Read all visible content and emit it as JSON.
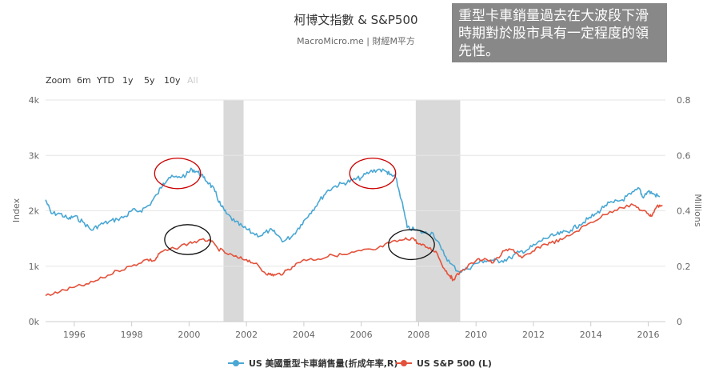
{
  "annotation": "重型卡車銷量過去在大波段下滑時期對於股市具有一定程度的領先性。",
  "colors": {
    "truck": "#49a7d4",
    "sp500": "#e4513a",
    "recession": "#d9d9d9",
    "circle_red": "#cc0000",
    "circle_black": "#111111",
    "grid": "#e6e6e6"
  },
  "zoom": {
    "label": "Zoom",
    "buttons": [
      "6m",
      "YTD",
      "1y",
      "5y",
      "10y"
    ],
    "disabled": "All"
  },
  "chart_data": {
    "type": "line",
    "title": "柯博文指數 & S&P500",
    "subtitle": "MacroMicro.me | 財經M平方",
    "xlabel": "",
    "xlim": [
      1995.0,
      2016.6
    ],
    "x_ticks": [
      "1996",
      "1998",
      "2000",
      "2002",
      "2004",
      "2006",
      "2008",
      "2010",
      "2012",
      "2014",
      "2016"
    ],
    "y_left": {
      "label": "Index",
      "ylim": [
        0,
        4000
      ],
      "ticks": [
        "0k",
        "1k",
        "2k",
        "3k",
        "4k"
      ]
    },
    "y_right": {
      "label": "Millions",
      "ylim": [
        0,
        0.8
      ],
      "ticks": [
        "0",
        "0.2",
        "0.4",
        "0.6",
        "0.8"
      ]
    },
    "recessions": [
      [
        2001.2,
        2001.9
      ],
      [
        2007.9,
        2009.45
      ]
    ],
    "grid": true,
    "legend_position": "bottom-center",
    "series": [
      {
        "name": "US 美國重型卡車銷售量(折成年率,R)",
        "axis": "right",
        "color": "#49a7d4",
        "x": [
          1995.0,
          1995.2,
          1995.5,
          1995.8,
          1996.0,
          1996.3,
          1996.6,
          1996.9,
          1997.2,
          1997.5,
          1997.8,
          1998.0,
          1998.3,
          1998.6,
          1998.9,
          1999.1,
          1999.3,
          1999.6,
          1999.9,
          2000.1,
          2000.3,
          2000.5,
          2000.7,
          2000.9,
          2001.1,
          2001.3,
          2001.6,
          2001.9,
          2002.2,
          2002.5,
          2002.8,
          2003.0,
          2003.3,
          2003.6,
          2003.9,
          2004.2,
          2004.5,
          2004.8,
          2005.1,
          2005.4,
          2005.7,
          2006.0,
          2006.3,
          2006.6,
          2006.9,
          2007.0,
          2007.2,
          2007.4,
          2007.6,
          2007.9,
          2008.2,
          2008.5,
          2008.8,
          2009.1,
          2009.4,
          2009.7,
          2010.0,
          2010.3,
          2010.6,
          2010.9,
          2011.2,
          2011.5,
          2011.8,
          2012.1,
          2012.4,
          2012.7,
          2013.0,
          2013.3,
          2013.6,
          2013.9,
          2014.2,
          2014.5,
          2014.8,
          2015.1,
          2015.4,
          2015.7,
          2015.8,
          2016.0,
          2016.2,
          2016.4
        ],
        "y": [
          0.44,
          0.39,
          0.39,
          0.37,
          0.38,
          0.36,
          0.33,
          0.35,
          0.36,
          0.37,
          0.38,
          0.4,
          0.4,
          0.42,
          0.46,
          0.5,
          0.52,
          0.52,
          0.53,
          0.55,
          0.54,
          0.52,
          0.5,
          0.47,
          0.42,
          0.39,
          0.36,
          0.34,
          0.32,
          0.31,
          0.33,
          0.32,
          0.29,
          0.31,
          0.35,
          0.39,
          0.43,
          0.47,
          0.49,
          0.5,
          0.51,
          0.52,
          0.54,
          0.55,
          0.54,
          0.53,
          0.52,
          0.44,
          0.34,
          0.33,
          0.32,
          0.32,
          0.26,
          0.21,
          0.18,
          0.19,
          0.21,
          0.22,
          0.22,
          0.22,
          0.23,
          0.25,
          0.26,
          0.28,
          0.3,
          0.31,
          0.32,
          0.33,
          0.35,
          0.37,
          0.39,
          0.42,
          0.43,
          0.44,
          0.46,
          0.48,
          0.45,
          0.47,
          0.46,
          0.45
        ]
      },
      {
        "name": "US S&P 500 (L)",
        "axis": "left",
        "color": "#e4513a",
        "x": [
          1995.0,
          1995.5,
          1996.0,
          1996.5,
          1997.0,
          1997.5,
          1998.0,
          1998.5,
          1998.8,
          1999.0,
          1999.5,
          2000.0,
          2000.3,
          2000.7,
          2001.0,
          2001.3,
          2001.7,
          2002.0,
          2002.3,
          2002.6,
          2002.8,
          2003.0,
          2003.3,
          2003.6,
          2004.0,
          2004.5,
          2005.0,
          2005.5,
          2006.0,
          2006.5,
          2007.0,
          2007.5,
          2007.8,
          2008.0,
          2008.3,
          2008.6,
          2008.9,
          2009.1,
          2009.2,
          2009.5,
          2010.0,
          2010.3,
          2010.6,
          2011.0,
          2011.3,
          2011.6,
          2011.9,
          2012.3,
          2012.6,
          2013.0,
          2013.5,
          2014.0,
          2014.5,
          2015.0,
          2015.5,
          2015.8,
          2016.0,
          2016.1,
          2016.3,
          2016.5
        ],
        "y": [
          470,
          540,
          620,
          680,
          790,
          920,
          1000,
          1120,
          1100,
          1250,
          1320,
          1420,
          1450,
          1480,
          1320,
          1230,
          1150,
          1120,
          1050,
          900,
          850,
          840,
          880,
          990,
          1120,
          1130,
          1200,
          1210,
          1280,
          1300,
          1420,
          1480,
          1510,
          1400,
          1340,
          1270,
          950,
          820,
          760,
          920,
          1100,
          1140,
          1060,
          1280,
          1300,
          1150,
          1230,
          1380,
          1420,
          1480,
          1630,
          1790,
          1930,
          2060,
          2100,
          2000,
          1950,
          1900,
          2080,
          2100
        ]
      }
    ]
  }
}
